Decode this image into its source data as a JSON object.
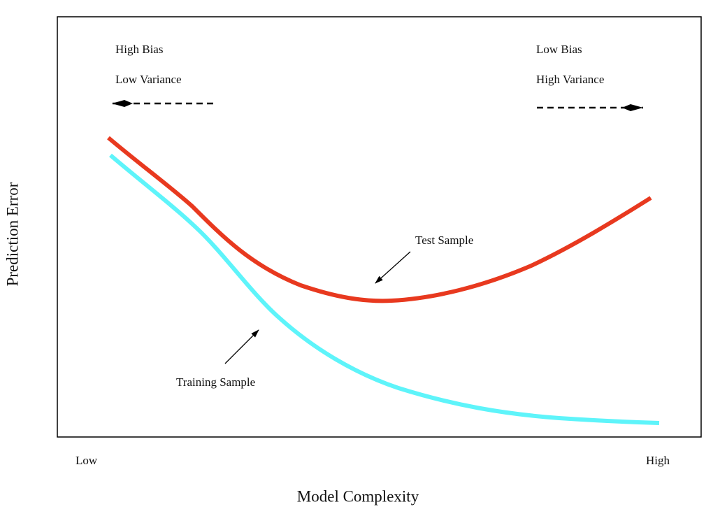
{
  "annotations": {
    "high_bias": "High Bias",
    "low_variance": "Low Variance",
    "low_bias": "Low Bias",
    "high_variance": "High Variance",
    "test_sample": "Test Sample",
    "training_sample": "Training Sample"
  },
  "x_axis": {
    "title": "Model Complexity",
    "low": "Low",
    "high": "High"
  },
  "y_axis": {
    "title": "Prediction Error"
  }
}
